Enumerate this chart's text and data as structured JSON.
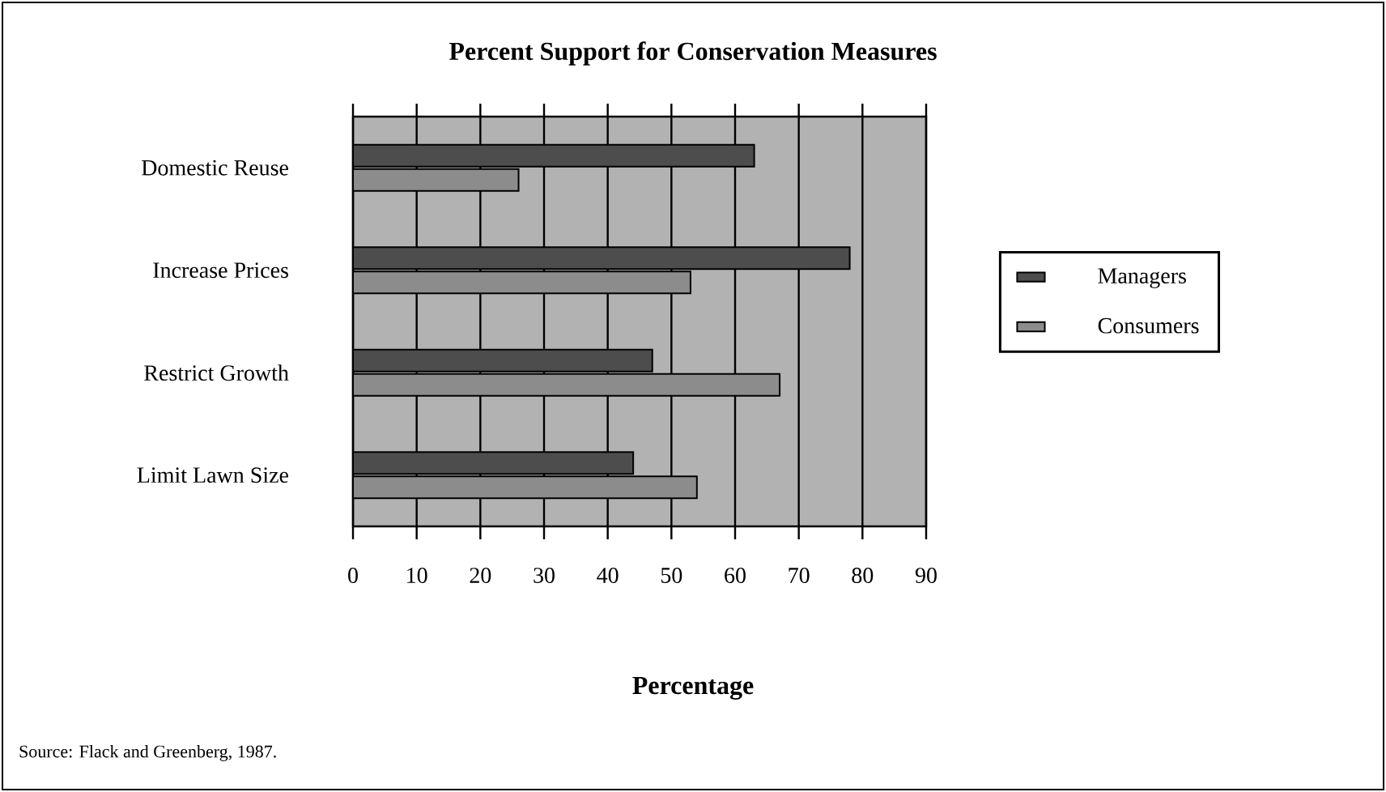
{
  "chart_data": {
    "type": "bar",
    "orientation": "horizontal",
    "title": "Percent Support for Conservation Measures",
    "xlabel": "Percentage",
    "annotations": [
      "Source: Flack and Greenberg, 1987."
    ],
    "categories": [
      "Domestic Reuse",
      "Increase Prices",
      "Restrict Growth",
      "Limit Lawn Size"
    ],
    "series": [
      {
        "name": "Managers",
        "color": "#4d4d4d",
        "values": [
          63,
          78,
          47,
          44
        ]
      },
      {
        "name": "Consumers",
        "color": "#8c8c8c",
        "values": [
          26,
          53,
          67,
          54
        ]
      }
    ],
    "xlim": [
      0,
      90
    ],
    "xticks": [
      0,
      10,
      20,
      30,
      40,
      50,
      60,
      70,
      80,
      90
    ],
    "grid": "x",
    "legend": "right"
  }
}
